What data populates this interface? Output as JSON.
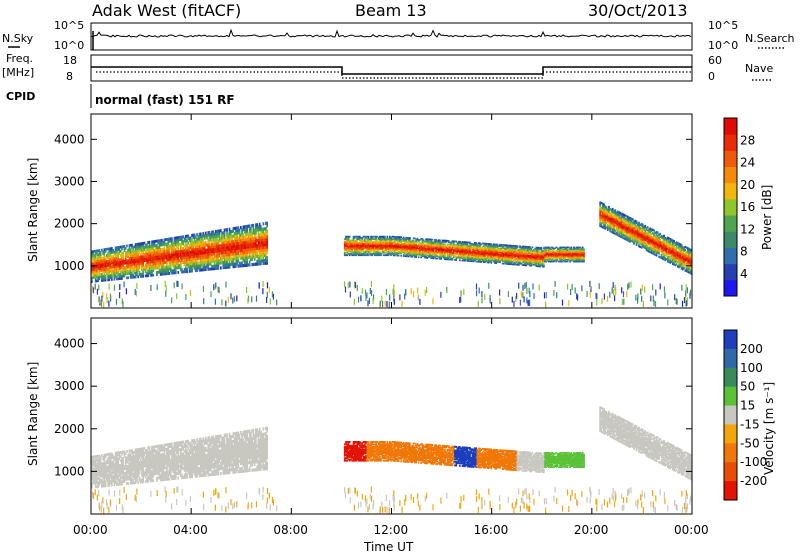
{
  "header": {
    "station": "Adak West (fitACF)",
    "beam": "Beam 13",
    "date": "30/Oct/2013",
    "mode": "normal (fast) 151 RF"
  },
  "top_panels": {
    "nsky_label": "N.Sky",
    "nsearch_label": "N.Search",
    "freq_label": "Freq.",
    "freq_unit": "[MHz]",
    "cpid_label": "CPID",
    "nave_label": "Nave",
    "noise_ticks": [
      "10^5",
      "10^0"
    ],
    "freq_ticks": [
      "18",
      "8"
    ],
    "nave_ticks": [
      "60",
      "0"
    ]
  },
  "axes": {
    "ylabel": "Slant Range [km]",
    "xlabel": "Time UT",
    "yticks": [
      "1000",
      "2000",
      "3000",
      "4000"
    ],
    "xticks": [
      "00:00",
      "04:00",
      "08:00",
      "12:00",
      "16:00",
      "20:00",
      "00:00"
    ]
  },
  "colorbars": {
    "power": {
      "label": "Power [dB]",
      "ticks": [
        "4",
        "8",
        "12",
        "16",
        "20",
        "24",
        "28"
      ],
      "colors": [
        "#1e16f0",
        "#2440b0",
        "#2f6fb0",
        "#3d8a6a",
        "#4fa54f",
        "#8fc62d",
        "#f5b60c",
        "#f48a0a",
        "#ef5a08",
        "#e82d06",
        "#e00b05"
      ]
    },
    "velocity": {
      "label": "Velocity [m s⁻¹]",
      "ticks": [
        "200",
        "100",
        "50",
        "15",
        "-15",
        "-50",
        "-100",
        "-200"
      ],
      "colors": [
        "#1d3fbd",
        "#2f6aa8",
        "#3b8a5a",
        "#5bc238",
        "#c8c8c0",
        "#f5a50c",
        "#f07808",
        "#ea4c06",
        "#e31405"
      ]
    }
  },
  "chart_data": [
    {
      "type": "heatmap",
      "title": "Power",
      "x_range_hours": [
        0,
        24
      ],
      "ylim": [
        0,
        4600
      ],
      "yunits": "km",
      "regions": [
        {
          "t_start": 0.0,
          "t_end": 7.0,
          "center_km": "950 at 00:00 rising to 1500 at 07:00",
          "max_power_db": 28
        },
        {
          "t_start": 10.1,
          "t_end": 18.1,
          "center_km": "1400 at 10:00, 1200 near 16:00",
          "max_power_db": 28
        },
        {
          "t_start": 18.1,
          "t_end": 19.7,
          "center_km": 1250,
          "max_power_db": 26
        },
        {
          "t_start": 20.3,
          "t_end": 24.0,
          "center_km": "2200 at 20:30 descending to 1050 at 24:00",
          "max_power_db": 26
        }
      ]
    },
    {
      "type": "heatmap",
      "title": "Velocity",
      "x_range_hours": [
        0,
        24
      ],
      "ylim": [
        0,
        4600
      ],
      "yunits": "km",
      "regions": [
        {
          "t_start": 0.0,
          "t_end": 7.0,
          "velocity_ms": "-15 to 15 (ground scatter)"
        },
        {
          "t_start": 10.1,
          "t_end": 11.0,
          "velocity_ms": -200
        },
        {
          "t_start": 11.0,
          "t_end": 14.5,
          "velocity_ms": "-50 to -100"
        },
        {
          "t_start": 14.5,
          "t_end": 15.4,
          "velocity_ms": 200
        },
        {
          "t_start": 15.4,
          "t_end": 17.0,
          "velocity_ms": -100
        },
        {
          "t_start": 17.0,
          "t_end": 18.1,
          "velocity_ms": "-15 to 15"
        },
        {
          "t_start": 18.1,
          "t_end": 19.7,
          "velocity_ms": 50
        },
        {
          "t_start": 20.3,
          "t_end": 24.0,
          "velocity_ms": "-15 to 15 (ground scatter)"
        }
      ]
    }
  ]
}
